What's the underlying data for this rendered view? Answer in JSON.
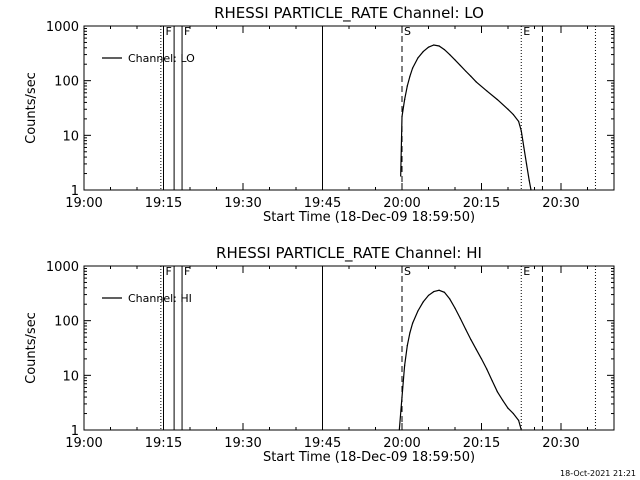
{
  "chart_data": [
    {
      "type": "line",
      "title": "RHESSI PARTICLE_RATE Channel: LO",
      "xlabel": "Start Time (18-Dec-09 18:59:50)",
      "ylabel": "Counts/sec",
      "xlim": [
        "19:00",
        "20:40"
      ],
      "ylim": [
        1,
        1000
      ],
      "yscale": "log",
      "x_ticks": [
        "19:00",
        "19:15",
        "19:30",
        "19:45",
        "20:00",
        "20:15",
        "20:30"
      ],
      "y_ticks": [
        "1",
        "10",
        "100",
        "1000"
      ],
      "legend": {
        "placement": "top-left",
        "entries": [
          "Channel: LO"
        ]
      },
      "series": [
        {
          "name": "Channel: LO",
          "x": [
            "19:59:45",
            "20:00:00",
            "20:00:30",
            "20:01:00",
            "20:01:30",
            "20:02:00",
            "20:03:00",
            "20:04:00",
            "20:05:00",
            "20:06:00",
            "20:07:00",
            "20:08:00",
            "20:09:00",
            "20:10:00",
            "20:11:00",
            "20:12:00",
            "20:13:00",
            "20:14:00",
            "20:16:00",
            "20:18:00",
            "20:20:00",
            "20:21:00",
            "20:22:00",
            "20:22:30",
            "20:23:00",
            "20:23:30",
            "20:24:00",
            "20:24:20"
          ],
          "y": [
            1.8,
            22,
            45,
            80,
            120,
            170,
            260,
            340,
            410,
            450,
            430,
            370,
            300,
            240,
            190,
            150,
            120,
            95,
            65,
            45,
            30,
            24,
            18,
            12,
            6,
            3,
            1.5,
            1
          ]
        }
      ],
      "vlines": [
        {
          "time": "19:14:30",
          "style": "dotted",
          "label": ""
        },
        {
          "time": "19:15:00",
          "style": "solid",
          "label": "F"
        },
        {
          "time": "19:17:00",
          "style": "solid",
          "label": ""
        },
        {
          "time": "19:18:30",
          "style": "solid",
          "label": "F"
        },
        {
          "time": "19:45:00",
          "style": "solid",
          "label": ""
        },
        {
          "time": "20:00:00",
          "style": "dashed",
          "label": "S"
        },
        {
          "time": "20:22:30",
          "style": "dotted",
          "label": "E"
        },
        {
          "time": "20:26:30",
          "style": "dashed",
          "label": ""
        },
        {
          "time": "20:36:30",
          "style": "dotted",
          "label": ""
        }
      ]
    },
    {
      "type": "line",
      "title": "RHESSI PARTICLE_RATE Channel: HI",
      "xlabel": "Start Time (18-Dec-09 18:59:50)",
      "ylabel": "Counts/sec",
      "xlim": [
        "19:00",
        "20:40"
      ],
      "ylim": [
        1,
        1000
      ],
      "yscale": "log",
      "x_ticks": [
        "19:00",
        "19:15",
        "19:30",
        "19:45",
        "20:00",
        "20:15",
        "20:30"
      ],
      "y_ticks": [
        "1",
        "10",
        "100",
        "1000"
      ],
      "legend": {
        "placement": "top-left",
        "entries": [
          "Channel: HI"
        ]
      },
      "series": [
        {
          "name": "Channel: HI",
          "x": [
            "19:59:30",
            "20:00:00",
            "20:00:30",
            "20:01:00",
            "20:01:30",
            "20:02:00",
            "20:03:00",
            "20:04:00",
            "20:05:00",
            "20:06:00",
            "20:07:00",
            "20:08:00",
            "20:09:00",
            "20:10:00",
            "20:11:00",
            "20:12:00",
            "20:13:00",
            "20:14:00",
            "20:15:00",
            "20:16:00",
            "20:17:00",
            "20:18:00",
            "20:19:00",
            "20:20:00",
            "20:21:00",
            "20:22:00",
            "20:22:30"
          ],
          "y": [
            1,
            4,
            15,
            35,
            60,
            90,
            150,
            220,
            290,
            340,
            360,
            330,
            250,
            170,
            110,
            70,
            45,
            30,
            20,
            13,
            8,
            5,
            3.5,
            2.5,
            2,
            1.5,
            1
          ]
        }
      ],
      "vlines": [
        {
          "time": "19:14:30",
          "style": "dotted",
          "label": ""
        },
        {
          "time": "19:15:00",
          "style": "solid",
          "label": "F"
        },
        {
          "time": "19:17:00",
          "style": "solid",
          "label": ""
        },
        {
          "time": "19:18:30",
          "style": "solid",
          "label": "F"
        },
        {
          "time": "19:45:00",
          "style": "solid",
          "label": ""
        },
        {
          "time": "20:00:00",
          "style": "dashed",
          "label": "S"
        },
        {
          "time": "20:22:30",
          "style": "dotted",
          "label": "E"
        },
        {
          "time": "20:26:30",
          "style": "dashed",
          "label": ""
        },
        {
          "time": "20:36:30",
          "style": "dotted",
          "label": ""
        }
      ]
    }
  ],
  "footer": {
    "timestamp": "18-Oct-2021 21:21"
  }
}
